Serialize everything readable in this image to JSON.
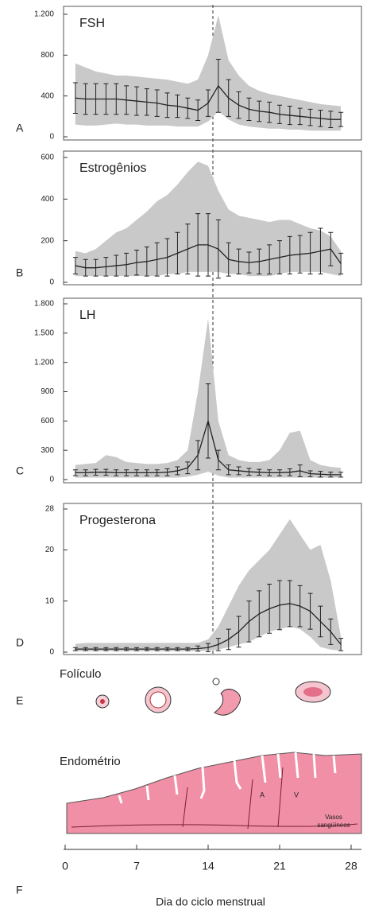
{
  "chart_data": [
    {
      "type": "line",
      "panel": "A",
      "title": "FSH",
      "xlim": [
        0,
        28
      ],
      "ylim": [
        0,
        1200
      ],
      "yticks": [
        0,
        400,
        800,
        {
          "value": 1200,
          "label": "1.200"
        }
      ],
      "x": [
        1,
        2,
        3,
        4,
        5,
        6,
        7,
        8,
        9,
        10,
        11,
        12,
        13,
        14,
        15,
        16,
        17,
        18,
        19,
        20,
        21,
        22,
        23,
        24,
        25,
        26,
        27
      ],
      "values": [
        380,
        370,
        370,
        370,
        370,
        360,
        350,
        340,
        330,
        310,
        300,
        280,
        260,
        330,
        500,
        380,
        310,
        270,
        250,
        240,
        220,
        210,
        200,
        190,
        180,
        170,
        170
      ],
      "errors": [
        150,
        150,
        150,
        150,
        150,
        140,
        140,
        130,
        130,
        120,
        110,
        100,
        100,
        130,
        260,
        180,
        130,
        110,
        100,
        100,
        90,
        90,
        80,
        80,
        80,
        80,
        70
      ],
      "range_high": [
        720,
        680,
        640,
        620,
        600,
        600,
        590,
        580,
        570,
        560,
        540,
        520,
        560,
        800,
        1190,
        750,
        600,
        500,
        450,
        420,
        400,
        380,
        360,
        340,
        320,
        310,
        300
      ],
      "range_low": [
        120,
        110,
        110,
        120,
        130,
        120,
        120,
        110,
        110,
        110,
        100,
        100,
        100,
        150,
        250,
        170,
        120,
        100,
        90,
        80,
        80,
        70,
        70,
        60,
        60,
        60,
        60
      ]
    },
    {
      "type": "line",
      "panel": "B",
      "title": "Estrogênios",
      "xlim": [
        0,
        28
      ],
      "ylim": [
        0,
        600
      ],
      "yticks": [
        0,
        200,
        400,
        600
      ],
      "x": [
        1,
        2,
        3,
        4,
        5,
        6,
        7,
        8,
        9,
        10,
        11,
        12,
        13,
        14,
        15,
        16,
        17,
        18,
        19,
        20,
        21,
        22,
        23,
        24,
        25,
        26,
        27
      ],
      "values": [
        80,
        70,
        70,
        75,
        80,
        85,
        95,
        100,
        110,
        120,
        140,
        160,
        180,
        180,
        160,
        110,
        100,
        95,
        100,
        110,
        120,
        130,
        135,
        140,
        150,
        160,
        90
      ],
      "errors": [
        40,
        40,
        40,
        45,
        50,
        55,
        60,
        70,
        80,
        90,
        100,
        120,
        150,
        150,
        140,
        80,
        60,
        50,
        60,
        70,
        80,
        90,
        90,
        100,
        110,
        80,
        50
      ],
      "range_high": [
        150,
        140,
        160,
        200,
        240,
        260,
        300,
        340,
        390,
        420,
        470,
        530,
        580,
        560,
        440,
        350,
        320,
        310,
        300,
        290,
        300,
        300,
        280,
        260,
        250,
        220,
        150
      ],
      "range_low": [
        30,
        30,
        30,
        30,
        30,
        30,
        30,
        30,
        30,
        40,
        40,
        50,
        50,
        50,
        50,
        40,
        40,
        30,
        30,
        30,
        40,
        50,
        50,
        50,
        50,
        40,
        30
      ]
    },
    {
      "type": "line",
      "panel": "C",
      "title": "LH",
      "xlim": [
        0,
        28
      ],
      "ylim": [
        0,
        1800
      ],
      "yticks": [
        0,
        300,
        600,
        900,
        {
          "value": 1200,
          "label": "1.200"
        },
        {
          "value": 1500,
          "label": "1.500"
        },
        {
          "value": 1800,
          "label": "1.800"
        }
      ],
      "x": [
        1,
        2,
        3,
        4,
        5,
        6,
        7,
        8,
        9,
        10,
        11,
        12,
        13,
        14,
        15,
        16,
        17,
        18,
        19,
        20,
        21,
        22,
        23,
        24,
        25,
        26,
        27
      ],
      "values": [
        70,
        70,
        75,
        75,
        70,
        70,
        70,
        70,
        70,
        75,
        90,
        120,
        250,
        600,
        200,
        100,
        90,
        80,
        75,
        70,
        70,
        75,
        90,
        60,
        55,
        50,
        50
      ],
      "errors": [
        30,
        30,
        30,
        30,
        30,
        30,
        30,
        30,
        30,
        35,
        40,
        60,
        150,
        380,
        100,
        50,
        40,
        35,
        30,
        30,
        30,
        35,
        60,
        30,
        30,
        25,
        25
      ],
      "range_high": [
        150,
        160,
        170,
        250,
        230,
        180,
        170,
        160,
        160,
        170,
        200,
        300,
        900,
        1650,
        600,
        250,
        200,
        180,
        180,
        200,
        300,
        480,
        500,
        200,
        150,
        130,
        120
      ],
      "range_low": [
        20,
        20,
        20,
        20,
        20,
        20,
        20,
        20,
        20,
        20,
        20,
        30,
        50,
        80,
        40,
        20,
        20,
        20,
        20,
        20,
        20,
        20,
        20,
        20,
        20,
        20,
        20
      ]
    },
    {
      "type": "line",
      "panel": "D",
      "title": "Progesterona",
      "xlim": [
        0,
        28
      ],
      "ylim": [
        0,
        28
      ],
      "yticks": [
        0,
        10,
        20,
        28
      ],
      "x": [
        1,
        2,
        3,
        4,
        5,
        6,
        7,
        8,
        9,
        10,
        11,
        12,
        13,
        14,
        15,
        16,
        17,
        18,
        19,
        20,
        21,
        22,
        23,
        24,
        25,
        26,
        27
      ],
      "values": [
        0.6,
        0.6,
        0.6,
        0.6,
        0.6,
        0.6,
        0.6,
        0.6,
        0.6,
        0.6,
        0.6,
        0.6,
        0.7,
        0.9,
        1.5,
        2.5,
        4,
        6,
        7.5,
        8.5,
        9.2,
        9.5,
        9,
        8,
        6,
        4,
        1.5
      ],
      "errors": [
        0.3,
        0.3,
        0.3,
        0.3,
        0.3,
        0.3,
        0.3,
        0.3,
        0.3,
        0.3,
        0.3,
        0.3,
        0.5,
        0.8,
        1.2,
        2,
        3,
        4,
        4.5,
        4.8,
        4.8,
        4.5,
        4,
        3.5,
        3,
        2.5,
        1.2
      ],
      "range_high": [
        1.6,
        1.8,
        1.8,
        1.8,
        1.8,
        1.8,
        1.8,
        1.8,
        1.8,
        1.8,
        1.8,
        1.8,
        1.8,
        2.5,
        5,
        9,
        13,
        16,
        18,
        20,
        23,
        26,
        23,
        20,
        21,
        14,
        3
      ],
      "range_low": [
        0.2,
        0.2,
        0.2,
        0.2,
        0.2,
        0.2,
        0.2,
        0.2,
        0.2,
        0.2,
        0.2,
        0.2,
        0.2,
        0.3,
        0.5,
        1,
        1.5,
        2,
        3,
        4,
        4.5,
        5,
        4.5,
        3,
        1,
        0.5,
        0.3
      ]
    }
  ],
  "diagram": {
    "follicle": {
      "panel": "E",
      "label": "Folículo"
    },
    "endometrium": {
      "panel": "F",
      "label": "Endométrio",
      "artery": "A",
      "vein": "V",
      "vessels": [
        "Vasos",
        "sangüíneos"
      ]
    },
    "x_axis": {
      "xlim": [
        0,
        28
      ],
      "xticks": [
        0,
        7,
        14,
        21,
        28
      ],
      "title": "Dia do ciclo menstrual"
    }
  }
}
